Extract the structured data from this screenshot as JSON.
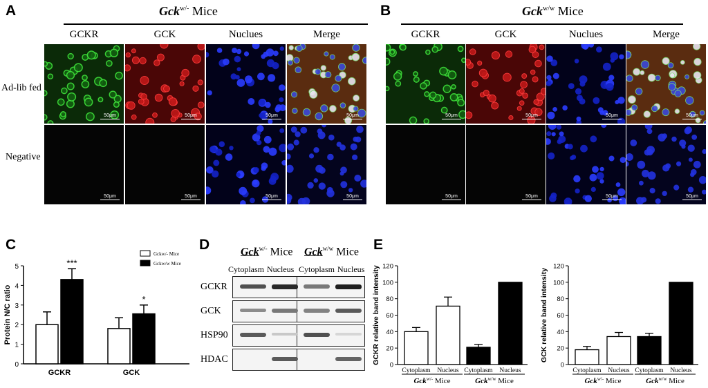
{
  "panel_a": {
    "letter": "A",
    "title_gene": "Gck",
    "title_sup": "w/-",
    "title_rest": " Mice",
    "columns": [
      "GCKR",
      "GCK",
      "Nuclues",
      "Merge"
    ],
    "rows": [
      "Ad-lib fed",
      "Negative"
    ],
    "scale": "50μm"
  },
  "panel_b": {
    "letter": "B",
    "title_gene": "Gck",
    "title_sup": "w/w",
    "title_rest": " Mice",
    "columns": [
      "GCKR",
      "GCK",
      "Nuclues",
      "Merge"
    ],
    "scale": "50μm"
  },
  "panel_c": {
    "letter": "C"
  },
  "panel_d": {
    "letter": "D",
    "group1_gene": "Gck",
    "group1_sup": "w/-",
    "group1_rest": " Mice",
    "group2_gene": "Gck",
    "group2_sup": "w/w",
    "group2_rest": " Mice",
    "fractions": [
      "Cytoplasm",
      "Nucleus",
      "Cytoplasm",
      "Nucleus"
    ],
    "blots": [
      {
        "label": "GCKR",
        "bands": [
          0.75,
          0.95,
          0.55,
          1.0
        ]
      },
      {
        "label": "GCK",
        "bands": [
          0.45,
          0.55,
          0.5,
          0.7
        ]
      },
      {
        "label": "HSP90",
        "bands": [
          0.7,
          0.15,
          0.75,
          0.08
        ]
      },
      {
        "label": "HDAC",
        "bands": [
          0.0,
          0.7,
          0.0,
          0.65
        ]
      }
    ]
  },
  "panel_e": {
    "letter": "E"
  },
  "colors": {
    "white_bar": "#ffffff",
    "black_bar": "#000000"
  },
  "chart_data": [
    {
      "type": "bar",
      "panel": "C",
      "ylabel": "Protein N/C ratio",
      "xlabel": "",
      "ylim": [
        0,
        5
      ],
      "yticks": [
        0,
        1,
        2,
        3,
        4,
        5
      ],
      "categories": [
        "GCKR",
        "GCK"
      ],
      "series": [
        {
          "name": "Gckw/- Mice",
          "values": [
            2.0,
            1.8
          ],
          "errors": [
            0.65,
            0.55
          ],
          "color": "#ffffff"
        },
        {
          "name": "Gckw/w Mice",
          "values": [
            4.3,
            2.55
          ],
          "errors": [
            0.55,
            0.45
          ],
          "color": "#000000"
        }
      ],
      "significance": [
        "***",
        "*"
      ],
      "legend": "top-right"
    },
    {
      "type": "bar",
      "panel": "E-left",
      "ylabel": "GCKR relative band intensity",
      "ylim": [
        0,
        120
      ],
      "yticks": [
        0,
        20,
        40,
        60,
        80,
        100,
        120
      ],
      "categories": [
        "Cytoplasm",
        "Nucleus",
        "Cytoplasm",
        "Nucleus"
      ],
      "groups": [
        {
          "gene": "Gck",
          "sup": "w/-",
          "rest": " Mice"
        },
        {
          "gene": "Gck",
          "sup": "w/w",
          "rest": " Mice"
        }
      ],
      "values": [
        40,
        71,
        21,
        100
      ],
      "errors": [
        5,
        11,
        3.5,
        0
      ],
      "colors": [
        "#ffffff",
        "#ffffff",
        "#000000",
        "#000000"
      ]
    },
    {
      "type": "bar",
      "panel": "E-right",
      "ylabel": "GCK relative band intensity",
      "ylim": [
        0,
        120
      ],
      "yticks": [
        0,
        20,
        40,
        60,
        80,
        100,
        120
      ],
      "categories": [
        "Cytoplasm",
        "Nucleus",
        "Cytoplasm",
        "Nucleus"
      ],
      "groups": [
        {
          "gene": "Gck",
          "sup": "w/-",
          "rest": " Mice"
        },
        {
          "gene": "Gck",
          "sup": "w/w",
          "rest": " Mice"
        }
      ],
      "values": [
        18,
        34,
        34,
        100
      ],
      "errors": [
        4,
        5,
        4,
        0
      ],
      "colors": [
        "#ffffff",
        "#ffffff",
        "#000000",
        "#000000"
      ]
    }
  ]
}
